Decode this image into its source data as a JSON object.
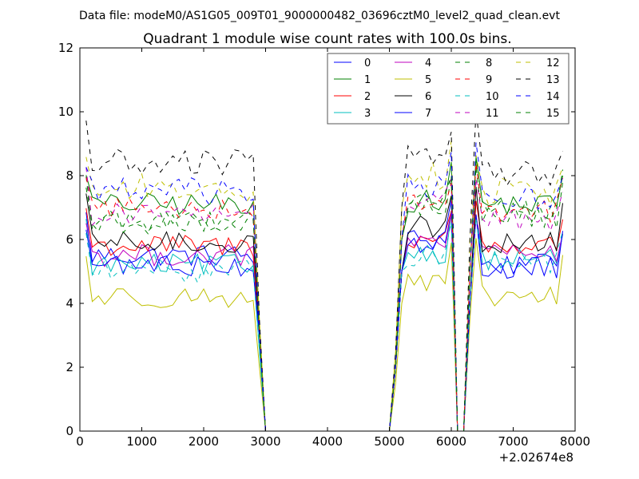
{
  "suptitle": "Data file: modeM0/AS1G05_009T01_9000000482_03696cztM0_level2_quad_clean.evt",
  "chart_data": {
    "type": "line",
    "title": "Quadrant 1 module wise count rates with 100.0s bins.",
    "xlabel": "",
    "ylabel": "",
    "x_offset_label": "+2.02674e8",
    "xlim": [
      0,
      8000
    ],
    "ylim": [
      0,
      12
    ],
    "xticks": [
      0,
      1000,
      2000,
      3000,
      4000,
      5000,
      6000,
      7000,
      8000
    ],
    "yticks": [
      0,
      2,
      4,
      6,
      8,
      10,
      12
    ],
    "grid": false,
    "legend_position": "top-right",
    "legend_columns": 4,
    "x_segments": [
      {
        "start": 100,
        "end": 2800,
        "step": 100
      },
      {
        "start": 5300,
        "end": 6000,
        "step": 100
      },
      {
        "start": 6400,
        "end": 7800,
        "step": 100
      }
    ],
    "x_gap_points": [
      2900,
      3000,
      5000,
      5100,
      5200,
      6100,
      6200,
      6300
    ],
    "series": [
      {
        "name": "0",
        "color": "#0000ff",
        "dash": "solid",
        "seg_means": [
          5.5,
          6.0,
          5.2
        ],
        "gap_values": [
          3.0,
          0,
          0,
          2.0,
          5.0,
          0,
          0,
          4.0
        ]
      },
      {
        "name": "1",
        "color": "#008000",
        "dash": "solid",
        "seg_means": [
          7.1,
          7.2,
          7.1
        ],
        "gap_values": [
          3.0,
          0,
          0,
          2.0,
          6.0,
          0,
          0,
          5.0
        ]
      },
      {
        "name": "2",
        "color": "#ff0000",
        "dash": "solid",
        "seg_means": [
          5.8,
          6.0,
          5.8
        ],
        "gap_values": [
          3.0,
          0,
          0,
          2.0,
          5.0,
          0,
          0,
          4.0
        ]
      },
      {
        "name": "3",
        "color": "#00bfbf",
        "dash": "solid",
        "seg_means": [
          5.2,
          5.6,
          5.4
        ],
        "gap_values": [
          2.5,
          0,
          0,
          2.0,
          5.0,
          0,
          0,
          4.0
        ]
      },
      {
        "name": "4",
        "color": "#bf00bf",
        "dash": "solid",
        "seg_means": [
          5.5,
          5.9,
          5.5
        ],
        "gap_values": [
          3.0,
          0,
          0,
          2.0,
          5.0,
          0,
          0,
          4.0
        ]
      },
      {
        "name": "5",
        "color": "#bfbf00",
        "dash": "solid",
        "seg_means": [
          4.2,
          4.6,
          4.2
        ],
        "gap_values": [
          2.0,
          0,
          0,
          1.5,
          4.0,
          0,
          0,
          3.5
        ]
      },
      {
        "name": "6",
        "color": "#000000",
        "dash": "solid",
        "seg_means": [
          5.9,
          6.4,
          5.9
        ],
        "gap_values": [
          3.0,
          0,
          0,
          2.0,
          5.0,
          0,
          0,
          4.0
        ]
      },
      {
        "name": "7",
        "color": "#0000ff",
        "dash": "solid",
        "seg_means": [
          5.2,
          5.9,
          5.1
        ],
        "gap_values": [
          3.0,
          0,
          0,
          2.0,
          5.0,
          0,
          0,
          4.0
        ]
      },
      {
        "name": "8",
        "color": "#008000",
        "dash": "dashed",
        "seg_means": [
          6.6,
          7.0,
          6.7
        ],
        "gap_values": [
          3.0,
          0,
          0,
          2.0,
          6.0,
          0,
          0,
          5.0
        ]
      },
      {
        "name": "9",
        "color": "#ff0000",
        "dash": "dashed",
        "seg_means": [
          7.0,
          7.1,
          6.9
        ],
        "gap_values": [
          3.0,
          0,
          0,
          2.0,
          6.0,
          0,
          0,
          5.0
        ]
      },
      {
        "name": "10",
        "color": "#00bfbf",
        "dash": "dashed",
        "seg_means": [
          5.0,
          5.5,
          5.3
        ],
        "gap_values": [
          2.5,
          0,
          0,
          2.0,
          5.0,
          0,
          0,
          4.0
        ]
      },
      {
        "name": "11",
        "color": "#bf00bf",
        "dash": "dashed",
        "seg_means": [
          6.8,
          7.2,
          6.6
        ],
        "gap_values": [
          3.0,
          0,
          0,
          2.0,
          6.0,
          0,
          0,
          5.0
        ]
      },
      {
        "name": "12",
        "color": "#bfbf00",
        "dash": "dashed",
        "seg_means": [
          7.6,
          8.0,
          7.5
        ],
        "gap_values": [
          3.5,
          0,
          0,
          2.5,
          7.0,
          0,
          0,
          6.0
        ]
      },
      {
        "name": "13",
        "color": "#000000",
        "dash": "dashed",
        "seg_means": [
          8.4,
          8.7,
          8.1
        ],
        "gap_values": [
          3.5,
          0,
          0,
          2.5,
          7.0,
          0,
          0,
          6.0
        ]
      },
      {
        "name": "14",
        "color": "#0000ff",
        "dash": "dashed",
        "seg_means": [
          7.5,
          7.6,
          7.3
        ],
        "gap_values": [
          3.0,
          0,
          0,
          2.0,
          6.0,
          0,
          0,
          5.0
        ]
      },
      {
        "name": "15",
        "color": "#008000",
        "dash": "dashed",
        "seg_means": [
          6.5,
          7.2,
          6.9
        ],
        "gap_values": [
          3.0,
          0,
          0,
          2.0,
          6.0,
          0,
          0,
          5.0
        ]
      }
    ]
  }
}
